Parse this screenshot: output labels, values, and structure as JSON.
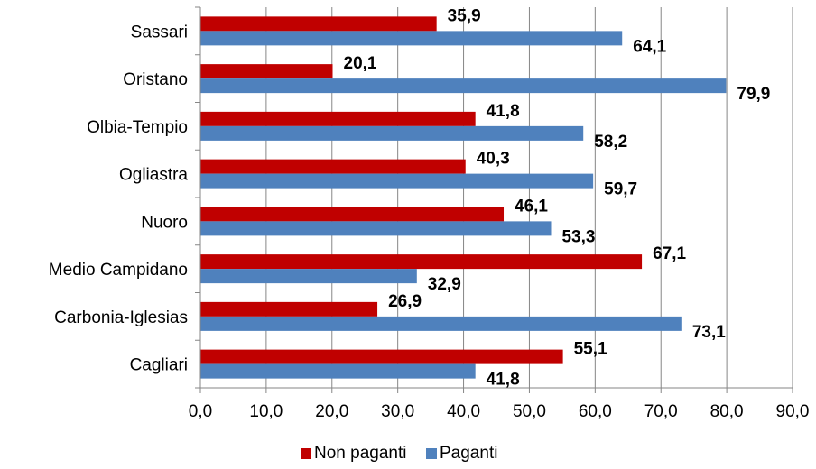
{
  "chart_data": {
    "type": "bar",
    "orientation": "horizontal",
    "categories": [
      "Sassari",
      "Oristano",
      "Olbia-Tempio",
      "Ogliastra",
      "Nuoro",
      "Medio Campidano",
      "Carbonia-Iglesias",
      "Cagliari"
    ],
    "series": [
      {
        "name": "Non paganti",
        "color": "#c00000",
        "values": [
          35.9,
          20.1,
          41.8,
          40.3,
          46.1,
          67.1,
          26.9,
          55.1
        ],
        "labels": [
          "35,9",
          "20,1",
          "41,8",
          "40,3",
          "46,1",
          "67,1",
          "26,9",
          "55,1"
        ]
      },
      {
        "name": "Paganti",
        "color": "#4f81bd",
        "values": [
          64.1,
          79.9,
          58.2,
          59.7,
          53.3,
          32.9,
          73.1,
          41.8
        ],
        "labels": [
          "64,1",
          "79,9",
          "58,2",
          "59,7",
          "53,3",
          "32,9",
          "73,1",
          "41,8"
        ]
      }
    ],
    "xlim": [
      0,
      90
    ],
    "ticks": [
      0,
      10,
      20,
      30,
      40,
      50,
      60,
      70,
      80,
      90
    ],
    "tick_labels": [
      "0,0",
      "10,0",
      "20,0",
      "30,0",
      "40,0",
      "50,0",
      "60,0",
      "70,0",
      "80,0",
      "90,0"
    ],
    "grid": true,
    "legend_position": "bottom",
    "gridline_color": "#868686",
    "axis_color": "#868686"
  }
}
